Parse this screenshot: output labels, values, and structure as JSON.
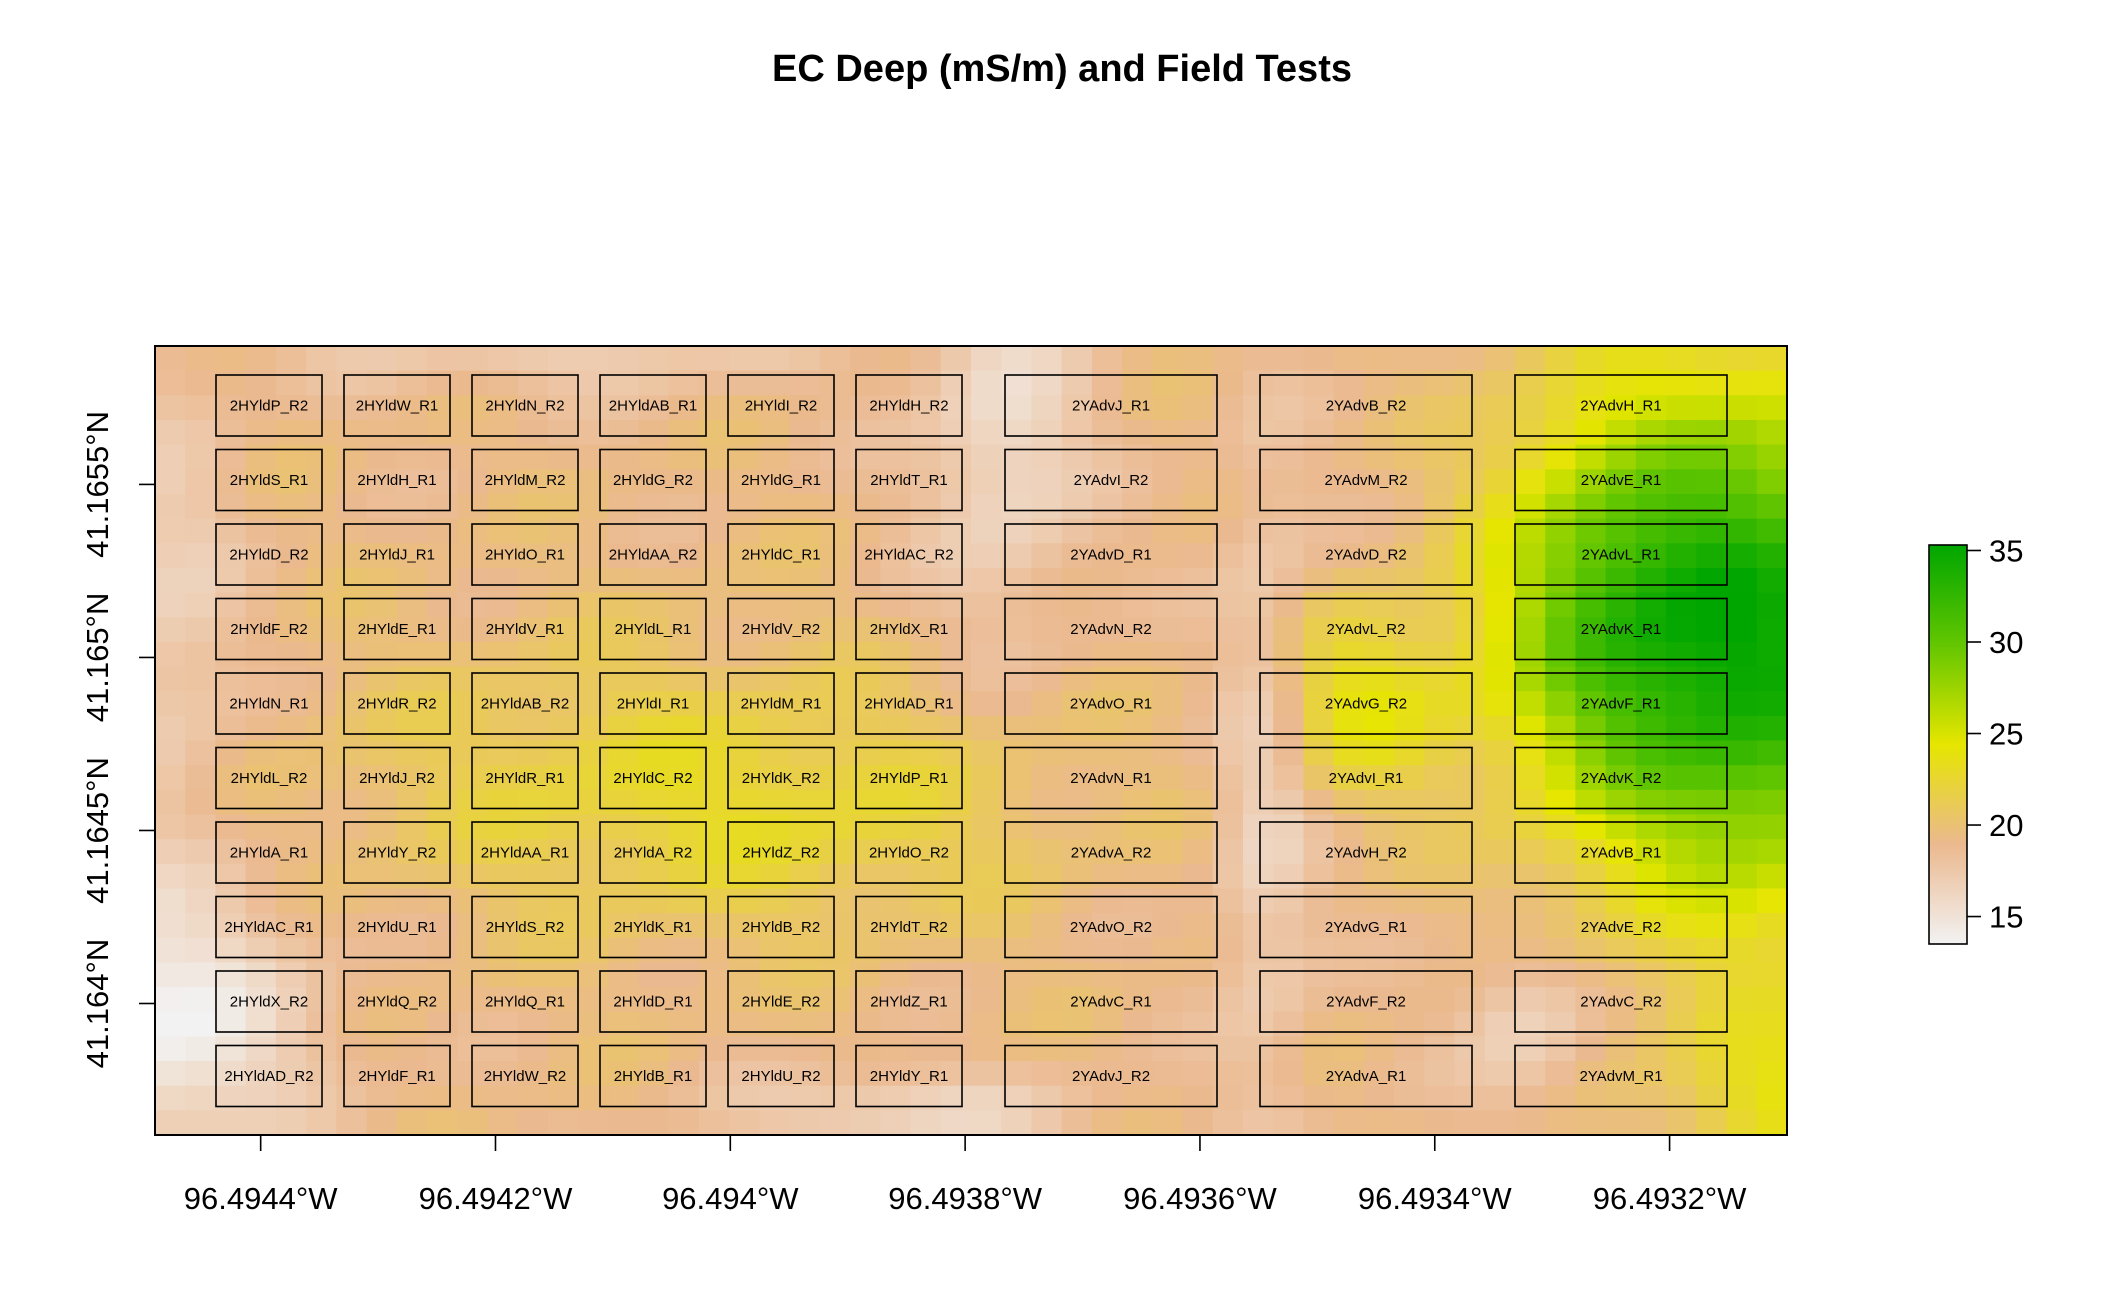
{
  "title": "EC Deep (mS/m) and Field Tests",
  "x_axis": {
    "unit": "longitude",
    "ticks": [
      "96.4944°W",
      "96.4942°W",
      "96.494°W",
      "96.4938°W",
      "96.4936°W",
      "96.4934°W",
      "96.4932°W"
    ],
    "tick_values": [
      -96.4944,
      -96.4942,
      -96.494,
      -96.4938,
      -96.4936,
      -96.4934,
      -96.4932
    ],
    "range": [
      -96.49449,
      -96.4931
    ]
  },
  "y_axis": {
    "unit": "latitude",
    "ticks": [
      "41.164°N",
      "41.1645°N",
      "41.165°N",
      "41.1655°N"
    ],
    "tick_values": [
      41.164,
      41.1645,
      41.165,
      41.1655
    ],
    "range": [
      41.16362,
      41.1659
    ]
  },
  "legend": {
    "placement": "right",
    "ticks": [
      "15",
      "20",
      "25",
      "30",
      "35"
    ],
    "tick_values": [
      15,
      20,
      25,
      30,
      35
    ],
    "range": [
      13.5,
      35.3
    ],
    "color_stops": [
      "#f2f2f2",
      "#ebb98f",
      "#e6e600",
      "#63c600",
      "#00a600"
    ]
  },
  "chart_data": {
    "type": "heatmap",
    "title": "EC Deep (mS/m) and Field Tests",
    "xlabel": "",
    "ylabel": "",
    "value_range": [
      13.5,
      35.3
    ],
    "plots": {
      "hyld_columns": [
        [
          "2HYldP_R2",
          "2HYldS_R1",
          "2HYldD_R2",
          "2HYldF_R2",
          "2HYldN_R1",
          "2HYldL_R2",
          "2HYldA_R1",
          "2HYldAC_R1",
          "2HYldX_R2",
          "2HYldAD_R2"
        ],
        [
          "2HYldW_R1",
          "2HYldH_R1",
          "2HYldJ_R1",
          "2HYldE_R1",
          "2HYldR_R2",
          "2HYldJ_R2",
          "2HYldY_R2",
          "2HYldU_R1",
          "2HYldQ_R2",
          "2HYldF_R1"
        ],
        [
          "2HYldN_R2",
          "2HYldM_R2",
          "2HYldO_R1",
          "2HYldV_R1",
          "2HYldAB_R2",
          "2HYldR_R1",
          "2HYldAA_R1",
          "2HYldS_R2",
          "2HYldQ_R1",
          "2HYldW_R2"
        ],
        [
          "2HYldAB_R1",
          "2HYldG_R2",
          "2HYldAA_R2",
          "2HYldL_R1",
          "2HYldI_R1",
          "2HYldC_R2",
          "2HYldA_R2",
          "2HYldK_R1",
          "2HYldD_R1",
          "2HYldB_R1"
        ],
        [
          "2HYldI_R2",
          "2HYldG_R1",
          "2HYldC_R1",
          "2HYldV_R2",
          "2HYldM_R1",
          "2HYldK_R2",
          "2HYldZ_R2",
          "2HYldB_R2",
          "2HYldE_R2",
          "2HYldU_R2"
        ],
        [
          "2HYldH_R2",
          "2HYldT_R1",
          "2HYldAC_R2",
          "2HYldX_R1",
          "2HYldAD_R1",
          "2HYldP_R1",
          "2HYldO_R2",
          "2HYldT_R2",
          "2HYldZ_R1",
          "2HYldY_R1"
        ]
      ],
      "yadv_columns": [
        [
          "2YAdvJ_R1",
          "2YAdvI_R2",
          "2YAdvD_R1",
          "2YAdvN_R2",
          "2YAdvO_R1",
          "2YAdvN_R1",
          "2YAdvA_R2",
          "2YAdvO_R2",
          "2YAdvC_R1",
          "2YAdvJ_R2"
        ],
        [
          "2YAdvB_R2",
          "2YAdvM_R2",
          "2YAdvD_R2",
          "2YAdvL_R2",
          "2YAdvG_R2",
          "2YAdvI_R1",
          "2YAdvH_R2",
          "2YAdvG_R1",
          "2YAdvF_R2",
          "2YAdvA_R1"
        ],
        [
          "2YAdvH_R1",
          "2YAdvE_R1",
          "2YAdvL_R1",
          "2YAdvK_R1",
          "2YAdvF_R1",
          "2YAdvK_R2",
          "2YAdvB_R1",
          "2YAdvE_R2",
          "2YAdvC_R2",
          "2YAdvM_R1"
        ]
      ]
    }
  }
}
